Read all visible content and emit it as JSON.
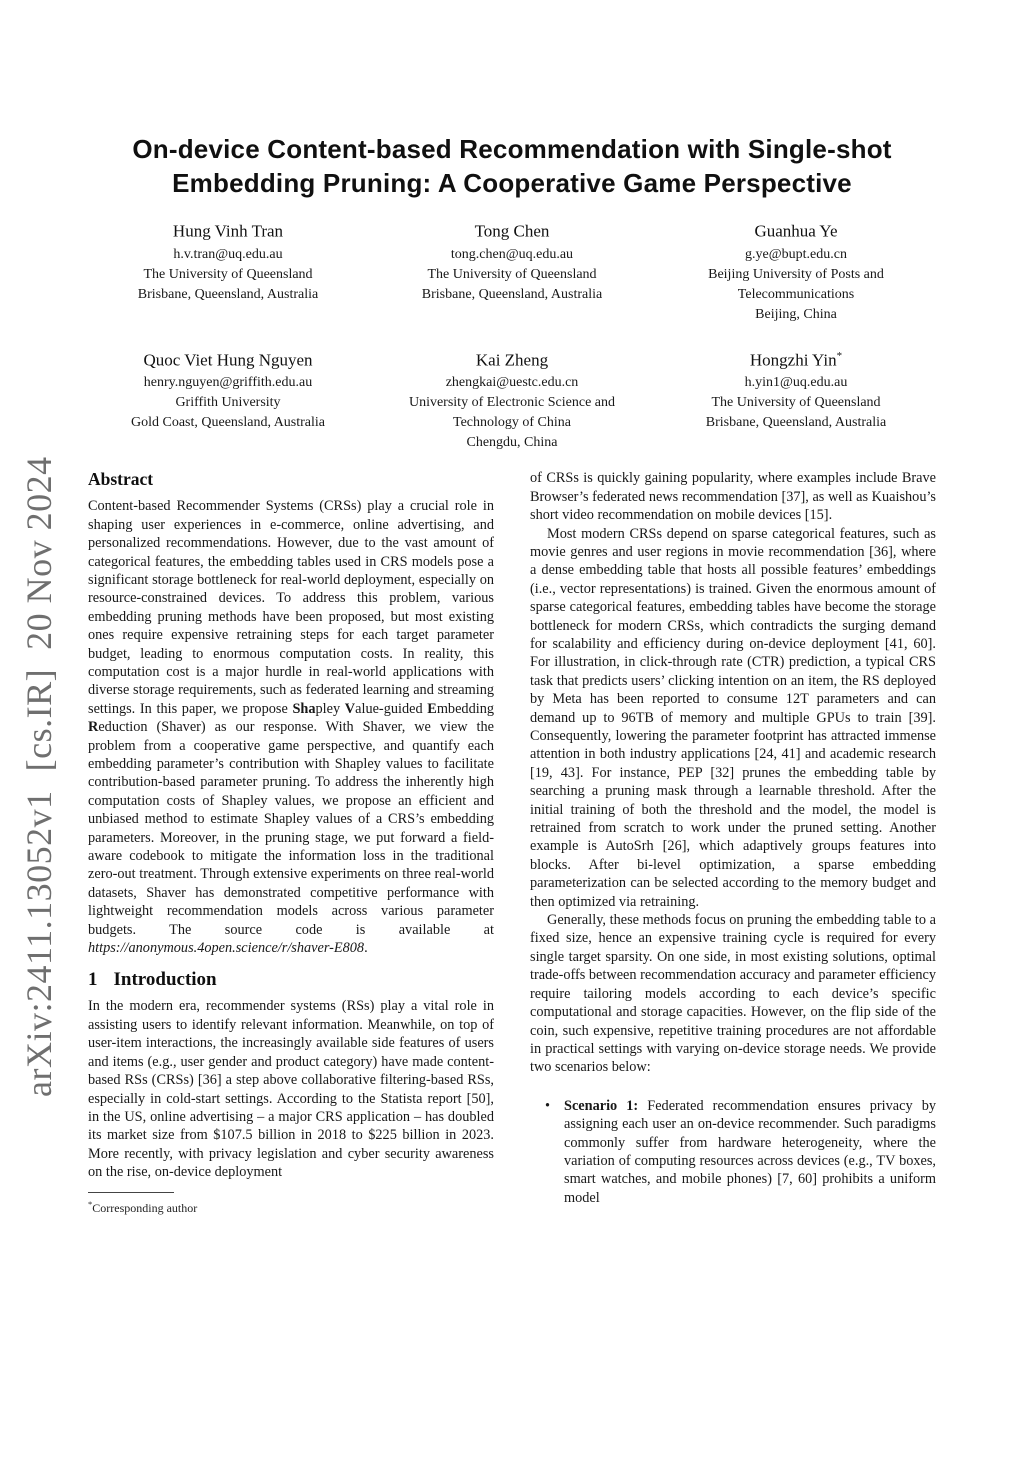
{
  "watermark": {
    "text": "arXiv:2411.13052v1  [cs.IR]  20 Nov 2024",
    "color": "#6f6f6f"
  },
  "title": {
    "line1": "On-device Content-based Recommendation with Single-shot",
    "line2": "Embedding Pruning: A Cooperative Game Perspective"
  },
  "authors": [
    {
      "name": "Hung Vinh Tran",
      "sup": "",
      "lines": [
        "h.v.tran@uq.edu.au",
        "The University of Queensland",
        "Brisbane, Queensland, Australia"
      ]
    },
    {
      "name": "Tong Chen",
      "sup": "",
      "lines": [
        "tong.chen@uq.edu.au",
        "The University of Queensland",
        "Brisbane, Queensland, Australia"
      ]
    },
    {
      "name": "Guanhua Ye",
      "sup": "",
      "lines": [
        "g.ye@bupt.edu.cn",
        "Beijing University of Posts and",
        "Telecommunications",
        "Beijing, China"
      ]
    },
    {
      "name": "Quoc Viet Hung Nguyen",
      "sup": "",
      "lines": [
        "henry.nguyen@griffith.edu.au",
        "Griffith University",
        "Gold Coast, Queensland, Australia"
      ]
    },
    {
      "name": "Kai Zheng",
      "sup": "",
      "lines": [
        "zhengkai@uestc.edu.cn",
        "University of Electronic Science and",
        "Technology of China",
        "Chengdu, China"
      ]
    },
    {
      "name": "Hongzhi Yin",
      "sup": "*",
      "lines": [
        "h.yin1@uq.edu.au",
        "The University of Queensland",
        "Brisbane, Queensland, Australia"
      ]
    }
  ],
  "abstract": {
    "heading": "Abstract",
    "segments": [
      {
        "t": "Content-based Recommender Systems (CRSs) play a crucial role in shaping user experiences in e-commerce, online advertising, and personalized recommendations. However, due to the vast amount of categorical features, the embedding tables used in CRS models pose a significant storage bottleneck for real-world deployment, especially on resource-constrained devices. To address this problem, various embedding pruning methods have been proposed, but most existing ones require expensive retraining steps for each target parameter budget, leading to enormous computation costs. In reality, this computation cost is a major hurdle in real-world applications with diverse storage requirements, such as federated learning and streaming settings. In this paper, we propose "
      },
      {
        "t": "Sha",
        "b": true
      },
      {
        "t": "pley "
      },
      {
        "t": "V",
        "b": true
      },
      {
        "t": "alue-guided "
      },
      {
        "t": "E",
        "b": true
      },
      {
        "t": "mbedding "
      },
      {
        "t": "R",
        "b": true
      },
      {
        "t": "eduction (Shaver) as our response. With Shaver, we view the problem from a cooperative game perspective, and quantify each embedding parameter’s contribution with Shapley values to facilitate contribution-based parameter pruning. To address the inherently high computation costs of Shapley values, we propose an efficient and unbiased method to estimate Shapley values of a CRS’s embedding parameters. Moreover, in the pruning stage, we put forward a field-aware codebook to mitigate the information loss in the traditional zero-out treatment. Through extensive experiments on three real-world datasets, Shaver has demonstrated competitive performance with lightweight recommendation models across various parameter budgets. The source code is available at "
      },
      {
        "t": "https://anonymous.4open.science/r/shaver-E808",
        "i": true,
        "n": "source-code-url"
      },
      {
        "t": "."
      }
    ]
  },
  "introduction": {
    "number": "1",
    "heading": "Introduction",
    "paragraph": "In the modern era, recommender systems (RSs) play a vital role in assisting users to identify relevant information. Meanwhile, on top of user-item interactions, the increasingly available side features of users and items (e.g., user gender and product category) have made content-based RSs (CRSs) [36] a step above collaborative filtering-based RSs, especially in cold-start settings. According to the Statista report [50], in the US, online advertising – a major CRS application – has doubled its market size from $107.5 billion in 2018 to $225 billion in 2023. More recently, with privacy legislation and cyber security awareness on the rise, on-device deployment"
  },
  "footnote": {
    "marker": "*",
    "text": "Corresponding author"
  },
  "right_column": {
    "paragraphs": [
      "of CRSs is quickly gaining popularity, where examples include Brave Browser’s federated news recommendation [37], as well as Kuaishou’s short video recommendation on mobile devices [15].",
      "Most modern CRSs depend on sparse categorical features, such as movie genres and user regions in movie recommendation [36], where a dense embedding table that hosts all possible features’ embeddings (i.e., vector representations) is trained. Given the enormous amount of sparse categorical features, embedding tables have become the storage bottleneck for modern CRSs, which contradicts the surging demand for scalability and efficiency during on-device deployment [41, 60]. For illustration, in click-through rate (CTR) prediction, a typical CRS task that predicts users’ clicking intention on an item, the RS deployed by Meta has been reported to consume 12T parameters and can demand up to 96TB of memory and multiple GPUs to train [39]. Consequently, lowering the parameter footprint has attracted immense attention in both industry applications [24, 41] and academic research [19, 43]. For instance, PEP [32] prunes the embedding table by searching a pruning mask through a learnable threshold. After the initial training of both the threshold and the model, the model is retrained from scratch to work under the pruned setting. Another example is AutoSrh [26], which adaptively groups features into blocks. After bi-level optimization, a sparse embedding parameterization can be selected according to the memory budget and then optimized via retraining.",
      "Generally, these methods focus on pruning the embedding table to a fixed size, hence an expensive training cycle is required for every single target sparsity. On one side, in most existing solutions, optimal trade-offs between recommendation accuracy and parameter efficiency require tailoring models according to each device’s specific computational and storage capacities. However, on the flip side of the coin, such expensive, repetitive training procedures are not affordable in practical settings with varying on-device storage needs. We provide two scenarios below:"
    ],
    "bullet": {
      "marker": "•",
      "segments": [
        {
          "t": "Scenario 1:",
          "b": true
        },
        {
          "t": " Federated recommendation ensures privacy by assigning each user an on-device recommender. Such paradigms commonly suffer from hardware heterogeneity, where the variation of computing resources across devices (e.g., TV boxes, smart watches, and mobile phones) [7, 60] prohibits a uniform model"
        }
      ]
    }
  }
}
